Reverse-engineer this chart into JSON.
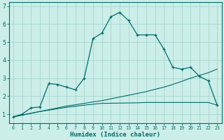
{
  "xlabel": "Humidex (Indice chaleur)",
  "bg_color": "#cceee8",
  "grid_color": "#aad8d2",
  "line_color": "#006b6b",
  "xlim": [
    -0.5,
    23.5
  ],
  "ylim": [
    0.5,
    7.2
  ],
  "yticks": [
    1,
    2,
    3,
    4,
    5,
    6,
    7
  ],
  "xticks": [
    0,
    1,
    2,
    3,
    4,
    5,
    6,
    7,
    8,
    9,
    10,
    11,
    12,
    13,
    14,
    15,
    16,
    17,
    18,
    19,
    20,
    21,
    22,
    23
  ],
  "series1_x": [
    0,
    1,
    2,
    3,
    4,
    5,
    6,
    7,
    8,
    9,
    10,
    11,
    12,
    13,
    14,
    15,
    16,
    17,
    18,
    19,
    20,
    21,
    22,
    23
  ],
  "series1_y": [
    0.85,
    1.0,
    1.35,
    1.4,
    2.7,
    2.65,
    2.5,
    2.35,
    3.0,
    5.2,
    5.5,
    6.4,
    6.65,
    6.2,
    5.4,
    5.4,
    5.4,
    4.6,
    3.6,
    3.5,
    3.6,
    3.1,
    2.85,
    1.5
  ],
  "series2_x": [
    0,
    1,
    2,
    3,
    4,
    5,
    6,
    7,
    8,
    9,
    10,
    11,
    12,
    13,
    14,
    15,
    16,
    17,
    18,
    19,
    20,
    21,
    22,
    23
  ],
  "series2_y": [
    0.85,
    0.95,
    1.05,
    1.15,
    1.25,
    1.35,
    1.45,
    1.52,
    1.6,
    1.68,
    1.75,
    1.85,
    1.95,
    2.05,
    2.15,
    2.25,
    2.38,
    2.5,
    2.65,
    2.82,
    3.0,
    3.15,
    3.3,
    3.5
  ],
  "series3_x": [
    0,
    1,
    2,
    3,
    4,
    5,
    6,
    7,
    8,
    9,
    10,
    14,
    15,
    16,
    17,
    18,
    19,
    20,
    21,
    22,
    23
  ],
  "series3_y": [
    0.85,
    0.95,
    1.05,
    1.15,
    1.22,
    1.3,
    1.38,
    1.44,
    1.5,
    1.55,
    1.6,
    1.63,
    1.65,
    1.65,
    1.65,
    1.65,
    1.65,
    1.65,
    1.65,
    1.65,
    1.5
  ]
}
